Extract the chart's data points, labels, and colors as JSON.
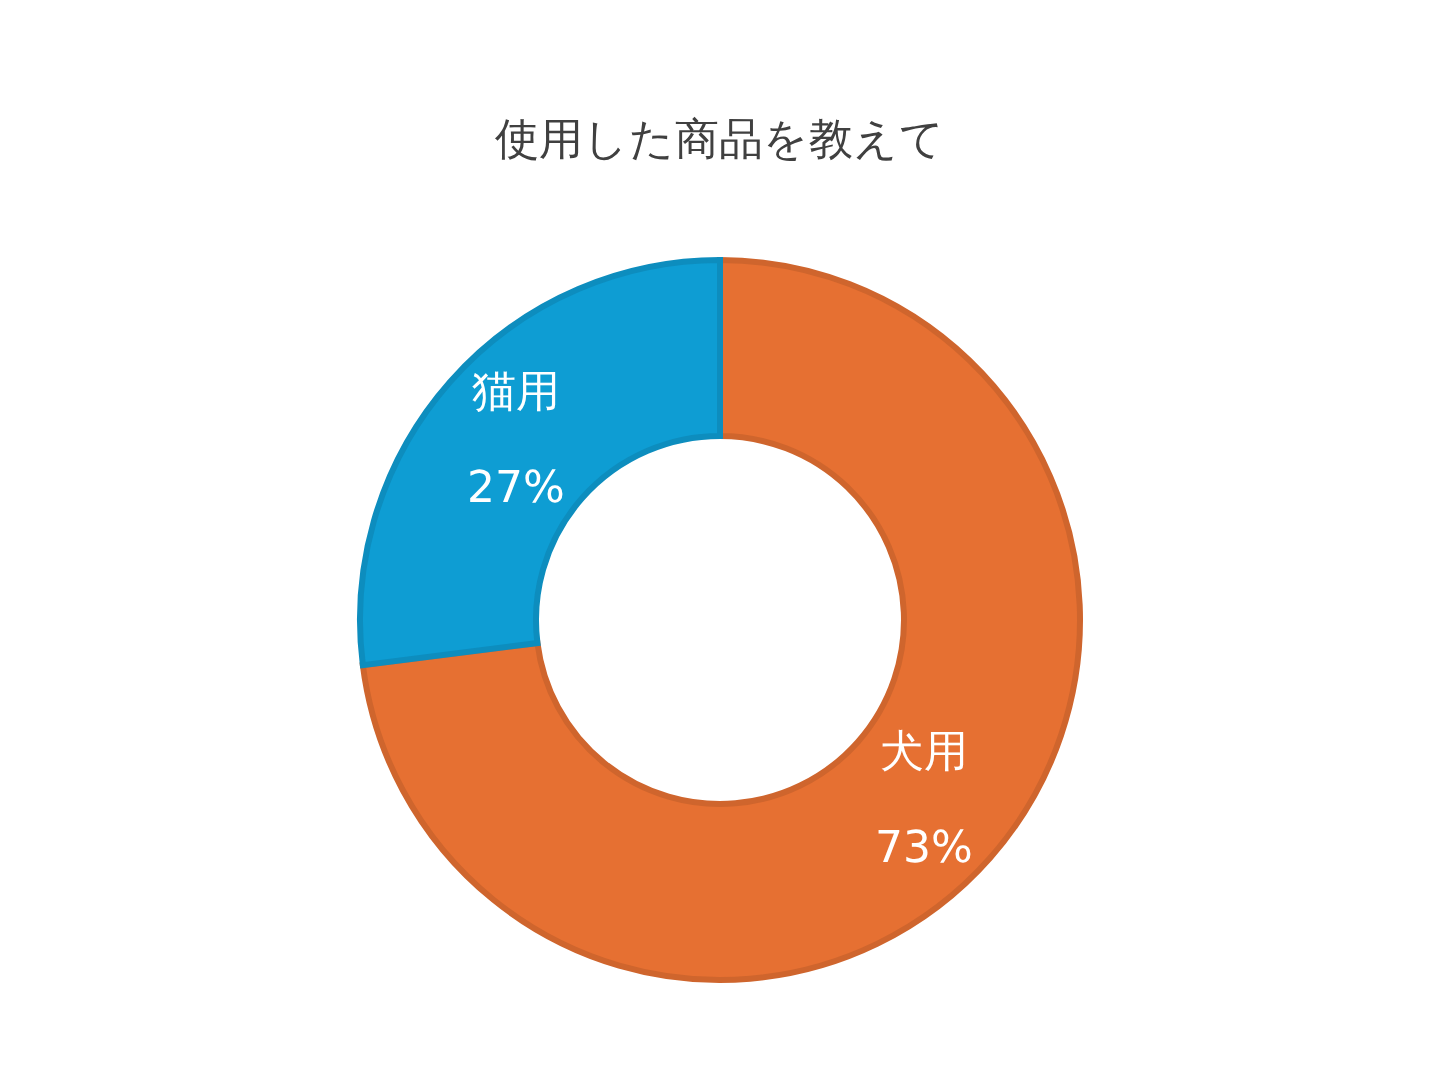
{
  "chart_data": {
    "type": "donut",
    "title": "使用した商品を教えて",
    "categories": [
      "犬用",
      "猫用"
    ],
    "values": [
      73,
      27
    ],
    "colors": [
      "#e67032",
      "#0e9dd3"
    ],
    "value_labels": [
      "73%",
      "27%"
    ]
  }
}
